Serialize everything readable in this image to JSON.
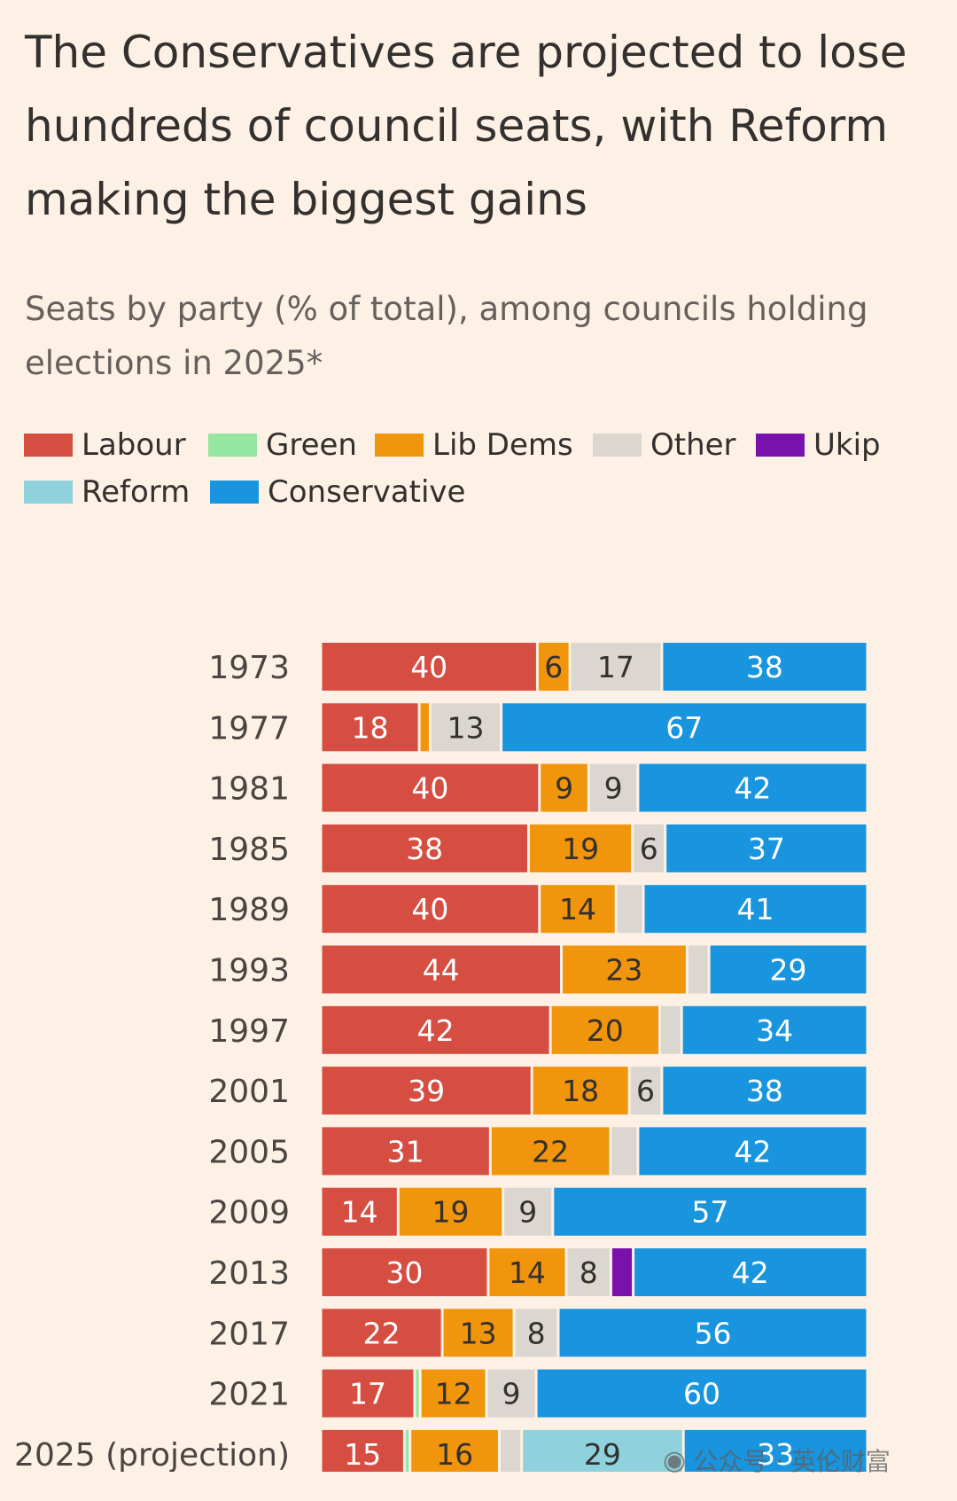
{
  "title": "The Conservatives are projected to lose hundreds of council seats, with Reform making the biggest gains",
  "subtitle": "Seats by party (% of total), among councils holding elections in 2025*",
  "legend": [
    {
      "name": "Labour",
      "color": "#d64e42"
    },
    {
      "name": "Green",
      "color": "#95e6a0"
    },
    {
      "name": "Lib Dems",
      "color": "#f0950c"
    },
    {
      "name": "Other",
      "color": "#dcd6d1"
    },
    {
      "name": "Ukip",
      "color": "#7b11ad"
    },
    {
      "name": "Reform",
      "color": "#8fd1dc"
    },
    {
      "name": "Conservative",
      "color": "#1895de"
    }
  ],
  "label_colors": {
    "Labour": "#ffffff",
    "Green": "#33302e",
    "Lib Dems": "#33302e",
    "Other": "#33302e",
    "Ukip": "#ffffff",
    "Reform": "#33302e",
    "Conservative": "#ffffff"
  },
  "chart_data": {
    "type": "bar",
    "orientation": "horizontal",
    "stacked": true,
    "title": "",
    "xlabel": "",
    "ylabel": "",
    "xlim": [
      0,
      100
    ],
    "categories": [
      "1973",
      "1977",
      "1981",
      "1985",
      "1989",
      "1993",
      "1997",
      "2001",
      "2005",
      "2009",
      "2013",
      "2017",
      "2021",
      "2025 (projection)"
    ],
    "series": [
      {
        "name": "Labour",
        "values": [
          40,
          18,
          40,
          38,
          40,
          44,
          42,
          39,
          31,
          14,
          30,
          22,
          17,
          15
        ],
        "labels": [
          "40",
          "18",
          "40",
          "38",
          "40",
          "44",
          "42",
          "39",
          "31",
          "14",
          "30",
          "22",
          "17",
          "15"
        ]
      },
      {
        "name": "Green",
        "values": [
          0,
          0,
          0,
          0,
          0,
          0,
          0,
          0,
          0,
          0,
          0,
          0,
          1,
          1
        ],
        "labels": [
          "",
          "",
          "",
          "",
          "",
          "",
          "",
          "",
          "",
          "",
          "",
          "",
          "",
          ""
        ]
      },
      {
        "name": "Lib Dems",
        "values": [
          6,
          2,
          9,
          19,
          14,
          23,
          20,
          18,
          22,
          19,
          14,
          13,
          12,
          16
        ],
        "labels": [
          "6",
          "",
          "9",
          "19",
          "14",
          "23",
          "20",
          "18",
          "22",
          "19",
          "14",
          "13",
          "12",
          "16"
        ]
      },
      {
        "name": "Other",
        "values": [
          17,
          13,
          9,
          6,
          5,
          4,
          4,
          6,
          5,
          9,
          8,
          8,
          9,
          4
        ],
        "labels": [
          "17",
          "13",
          "9",
          "6",
          "",
          "",
          "",
          "6",
          "",
          "9",
          "8",
          "8",
          "9",
          ""
        ]
      },
      {
        "name": "Ukip",
        "values": [
          0,
          0,
          0,
          0,
          0,
          0,
          0,
          0,
          0,
          0,
          4,
          0,
          0,
          0
        ],
        "labels": [
          "",
          "",
          "",
          "",
          "",
          "",
          "",
          "",
          "",
          "",
          "",
          "",
          "",
          ""
        ]
      },
      {
        "name": "Reform",
        "values": [
          0,
          0,
          0,
          0,
          0,
          0,
          0,
          0,
          0,
          0,
          0,
          0,
          0,
          29
        ],
        "labels": [
          "",
          "",
          "",
          "",
          "",
          "",
          "",
          "",
          "",
          "",
          "",
          "",
          "",
          "29"
        ]
      },
      {
        "name": "Conservative",
        "values": [
          38,
          67,
          42,
          37,
          41,
          29,
          34,
          38,
          42,
          57,
          42,
          56,
          60,
          33
        ],
        "labels": [
          "38",
          "67",
          "42",
          "37",
          "41",
          "29",
          "34",
          "38",
          "42",
          "57",
          "42",
          "56",
          "60",
          "33"
        ]
      }
    ]
  },
  "watermark": {
    "icon": "wechat-icon",
    "text": "公众号 · 英伦财富"
  }
}
